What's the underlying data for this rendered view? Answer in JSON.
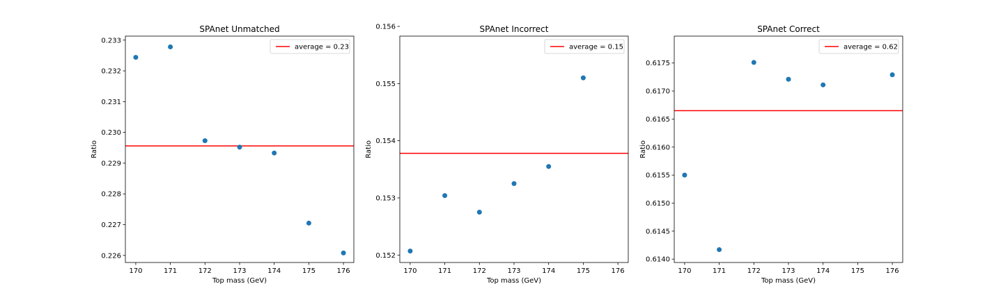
{
  "chart_data": [
    {
      "type": "scatter",
      "title": "SPAnet Unmatched",
      "xlabel": "Top mass (GeV)",
      "ylabel": "Ratio",
      "xlim": [
        169.7,
        176.3
      ],
      "ylim": [
        0.22577,
        0.23313
      ],
      "xticks": [
        "170",
        "171",
        "172",
        "173",
        "174",
        "175",
        "176"
      ],
      "yticks": [
        "0.226",
        "0.227",
        "0.228",
        "0.229",
        "0.230",
        "0.231",
        "0.232",
        "0.233"
      ],
      "x": [
        170,
        171,
        172,
        173,
        174,
        175,
        176
      ],
      "y": [
        0.23244,
        0.23278,
        0.22973,
        0.22952,
        0.22933,
        0.22705,
        0.22608
      ],
      "average": 0.22956,
      "legend": "average = 0.23",
      "legend_loc": "upper right",
      "point_color": "#1f77b4",
      "line_color": "#ff0000"
    },
    {
      "type": "scatter",
      "title": "SPAnet Incorrect",
      "xlabel": "Top mass (GeV)",
      "ylabel": "Ratio",
      "xlim": [
        169.7,
        176.3
      ],
      "ylim": [
        0.15187,
        0.15583
      ],
      "xticks": [
        "170",
        "171",
        "172",
        "173",
        "174",
        "175",
        "176"
      ],
      "yticks": [
        "0.152",
        "0.153",
        "0.154",
        "0.155",
        "0.156"
      ],
      "x": [
        170,
        171,
        172,
        173,
        174,
        175
      ],
      "y": [
        0.15207,
        0.15304,
        0.15275,
        0.15325,
        0.15355,
        0.1551
      ],
      "average": 0.15378,
      "legend": "average = 0.15",
      "legend_loc": "upper right",
      "point_color": "#1f77b4",
      "line_color": "#ff0000"
    },
    {
      "type": "scatter",
      "title": "SPAnet Correct",
      "xlabel": "Top mass (GeV)",
      "ylabel": "Ratio",
      "xlim": [
        169.7,
        176.3
      ],
      "ylim": [
        0.61394,
        0.61798
      ],
      "xticks": [
        "170",
        "171",
        "172",
        "173",
        "174",
        "175",
        "176"
      ],
      "yticks": [
        "0.6140",
        "0.6145",
        "0.6150",
        "0.6155",
        "0.6160",
        "0.6165",
        "0.6170",
        "0.6175"
      ],
      "x": [
        170,
        171,
        172,
        173,
        174,
        176
      ],
      "y": [
        0.6155,
        0.61417,
        0.61751,
        0.61721,
        0.61711,
        0.61729
      ],
      "average": 0.61665,
      "legend": "average = 0.62",
      "legend_loc": "upper right",
      "point_color": "#1f77b4",
      "line_color": "#ff0000"
    }
  ]
}
